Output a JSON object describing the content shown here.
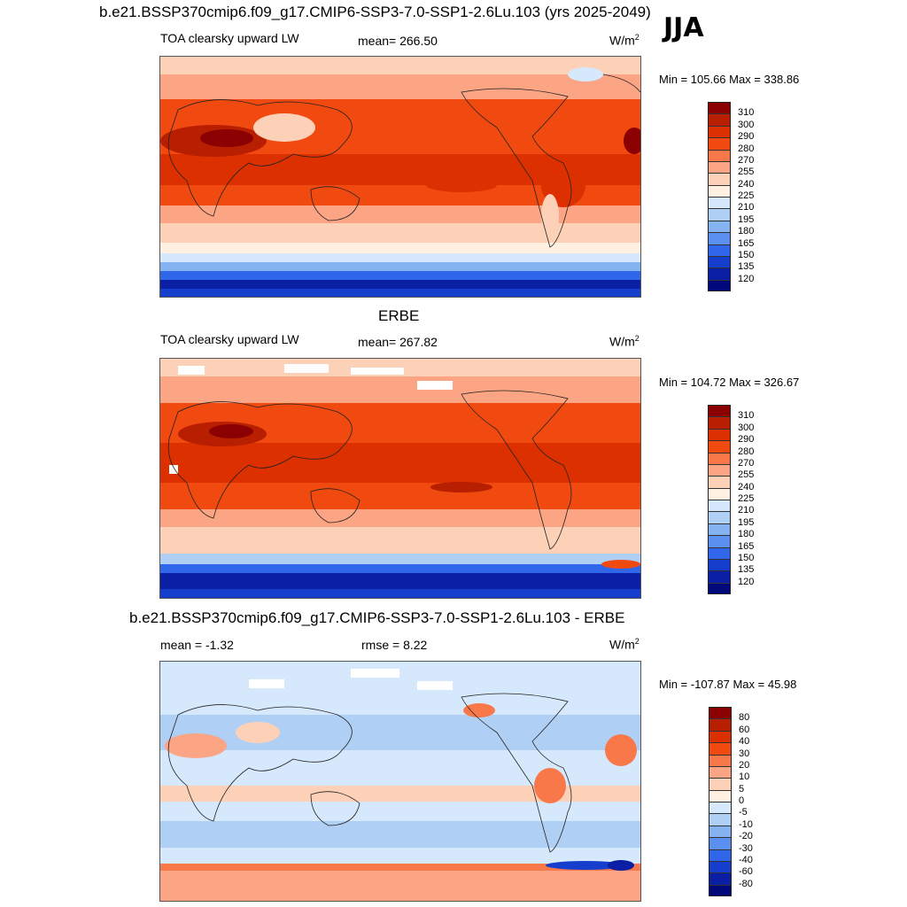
{
  "title": "b.e21.BSSP370cmip6.f09_g17.CMIP6-SSP3-7.0-SSP1-2.6Lu.103 (yrs 2025-2049)",
  "season": "JJA",
  "chart_data": [
    {
      "type": "heatmap",
      "title": "",
      "variable": "TOA clearsky upward LW",
      "stat_text": "mean= 266.50",
      "units_base": "W/m",
      "units_exp": "2",
      "minmax": "Min = 105.66 Max = 338.86",
      "projection": "global cylindrical equidistant, Pacific centered",
      "colorbar": {
        "levels": [
          "310",
          "300",
          "290",
          "280",
          "270",
          "255",
          "240",
          "225",
          "210",
          "195",
          "180",
          "165",
          "150",
          "135",
          "120"
        ],
        "colors": [
          "#8b0000",
          "#b81e00",
          "#dc3000",
          "#f04a10",
          "#f8784a",
          "#fca585",
          "#fdd0b8",
          "#fff0e2",
          "#d6e8fb",
          "#b0cff5",
          "#85b2f0",
          "#5b8ff0",
          "#3066ea",
          "#143ecb",
          "#0a1fa3",
          "#00087a"
        ]
      },
      "field_description": "High values over tropics/subtropics and deserts; low values over Antarctica/Southern Ocean"
    },
    {
      "type": "heatmap",
      "title": "ERBE",
      "variable": "TOA clearsky upward LW",
      "stat_text": "mean= 267.82",
      "units_base": "W/m",
      "units_exp": "2",
      "minmax": "Min = 104.72 Max = 326.67",
      "projection": "global cylindrical equidistant, Pacific centered",
      "colorbar": {
        "levels": [
          "310",
          "300",
          "290",
          "280",
          "270",
          "255",
          "240",
          "225",
          "210",
          "195",
          "180",
          "165",
          "150",
          "135",
          "120"
        ],
        "colors": [
          "#8b0000",
          "#b81e00",
          "#dc3000",
          "#f04a10",
          "#f8784a",
          "#fca585",
          "#fdd0b8",
          "#fff0e2",
          "#d6e8fb",
          "#b0cff5",
          "#85b2f0",
          "#5b8ff0",
          "#3066ea",
          "#143ecb",
          "#0a1fa3",
          "#00087a"
        ]
      },
      "field_description": "Observed field with missing (white) patches at high northern latitudes"
    },
    {
      "type": "heatmap",
      "title": "b.e21.BSSP370cmip6.f09_g17.CMIP6-SSP3-7.0-SSP1-2.6Lu.103 - ERBE",
      "stat_text": "mean =  -1.32",
      "rmse_text": "rmse =   8.22",
      "units_base": "W/m",
      "units_exp": "2",
      "minmax": "Min = -107.87 Max =  45.98",
      "projection": "global cylindrical equidistant, Pacific centered",
      "colorbar": {
        "levels": [
          "80",
          "60",
          "40",
          "30",
          "20",
          "10",
          "5",
          "0",
          "-5",
          "-10",
          "-20",
          "-30",
          "-40",
          "-60",
          "-80"
        ],
        "colors": [
          "#8b0000",
          "#b81e00",
          "#dc3000",
          "#f04a10",
          "#f8784a",
          "#fca585",
          "#fdd0b8",
          "#fff0e2",
          "#d6e8fb",
          "#b0cff5",
          "#85b2f0",
          "#5b8ff0",
          "#3066ea",
          "#143ecb",
          "#0a1fa3",
          "#00087a"
        ]
      },
      "field_description": "Difference field: mostly slightly negative (light blue), positive over deserts and Antarctica, strongly negative near Antarctic coast"
    }
  ]
}
